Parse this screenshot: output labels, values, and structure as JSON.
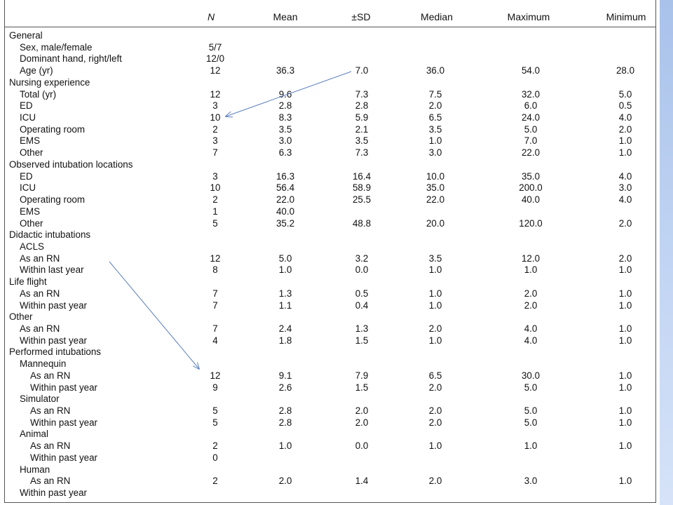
{
  "columns": {
    "label": "",
    "n": "N",
    "mean": "Mean",
    "sd": "±SD",
    "median": "Median",
    "maximum": "Maximum",
    "minimum": "Minimum"
  },
  "rows": [
    {
      "type": "section",
      "label": "General"
    },
    {
      "type": "item",
      "level": 1,
      "label": "Sex, male/female",
      "n": "5/7"
    },
    {
      "type": "item",
      "level": 1,
      "label": "Dominant hand, right/left",
      "n": "12/0"
    },
    {
      "type": "item",
      "level": 1,
      "label": "Age (yr)",
      "n": "12",
      "mean": "36.3",
      "sd": "7.0",
      "median": "36.0",
      "maximum": "54.0",
      "minimum": "28.0"
    },
    {
      "type": "section",
      "label": "Nursing experience"
    },
    {
      "type": "item",
      "level": 1,
      "label": "Total (yr)",
      "n": "12",
      "mean": "9.6",
      "sd": "7.3",
      "median": "7.5",
      "maximum": "32.0",
      "minimum": "5.0"
    },
    {
      "type": "item",
      "level": 1,
      "label": "ED",
      "n": "3",
      "mean": "2.8",
      "sd": "2.8",
      "median": "2.0",
      "maximum": "6.0",
      "minimum": "0.5"
    },
    {
      "type": "item",
      "level": 1,
      "label": "ICU",
      "n": "10",
      "mean": "8.3",
      "sd": "5.9",
      "median": "6.5",
      "maximum": "24.0",
      "minimum": "4.0"
    },
    {
      "type": "item",
      "level": 1,
      "label": "Operating room",
      "n": "2",
      "mean": "3.5",
      "sd": "2.1",
      "median": "3.5",
      "maximum": "5.0",
      "minimum": "2.0"
    },
    {
      "type": "item",
      "level": 1,
      "label": "EMS",
      "n": "3",
      "mean": "3.0",
      "sd": "3.5",
      "median": "1.0",
      "maximum": "7.0",
      "minimum": "1.0"
    },
    {
      "type": "item",
      "level": 1,
      "label": "Other",
      "n": "7",
      "mean": "6.3",
      "sd": "7.3",
      "median": "3.0",
      "maximum": "22.0",
      "minimum": "1.0"
    },
    {
      "type": "section",
      "label": "Observed intubation locations"
    },
    {
      "type": "item",
      "level": 1,
      "label": "ED",
      "n": "3",
      "mean": "16.3",
      "sd": "16.4",
      "median": "10.0",
      "maximum": "35.0",
      "minimum": "4.0"
    },
    {
      "type": "item",
      "level": 1,
      "label": "ICU",
      "n": "10",
      "mean": "56.4",
      "sd": "58.9",
      "median": "35.0",
      "maximum": "200.0",
      "minimum": "3.0"
    },
    {
      "type": "item",
      "level": 1,
      "label": "Operating room",
      "n": "2",
      "mean": "22.0",
      "sd": "25.5",
      "median": "22.0",
      "maximum": "40.0",
      "minimum": "4.0"
    },
    {
      "type": "item",
      "level": 1,
      "label": "EMS",
      "n": "1",
      "mean": "40.0"
    },
    {
      "type": "item",
      "level": 1,
      "label": "Other",
      "n": "5",
      "mean": "35.2",
      "sd": "48.8",
      "median": "20.0",
      "maximum": "120.0",
      "minimum": "2.0"
    },
    {
      "type": "section",
      "label": "Didactic intubations"
    },
    {
      "type": "item",
      "level": 1,
      "label": "ACLS"
    },
    {
      "type": "item",
      "level": 1,
      "label": "As an RN",
      "n": "12",
      "mean": "5.0",
      "sd": "3.2",
      "median": "3.5",
      "maximum": "12.0",
      "minimum": "2.0"
    },
    {
      "type": "item",
      "level": 1,
      "label": "Within last year",
      "n": "8",
      "mean": "1.0",
      "sd": "0.0",
      "median": "1.0",
      "maximum": "1.0",
      "minimum": "1.0"
    },
    {
      "type": "section",
      "label": "Life flight"
    },
    {
      "type": "item",
      "level": 1,
      "label": "As an RN",
      "n": "7",
      "mean": "1.3",
      "sd": "0.5",
      "median": "1.0",
      "maximum": "2.0",
      "minimum": "1.0"
    },
    {
      "type": "item",
      "level": 1,
      "label": "Within past year",
      "n": "7",
      "mean": "1.1",
      "sd": "0.4",
      "median": "1.0",
      "maximum": "2.0",
      "minimum": "1.0"
    },
    {
      "type": "section",
      "label": "Other"
    },
    {
      "type": "item",
      "level": 1,
      "label": "As an RN",
      "n": "7",
      "mean": "2.4",
      "sd": "1.3",
      "median": "2.0",
      "maximum": "4.0",
      "minimum": "1.0"
    },
    {
      "type": "item",
      "level": 1,
      "label": "Within past year",
      "n": "4",
      "mean": "1.8",
      "sd": "1.5",
      "median": "1.0",
      "maximum": "4.0",
      "minimum": "1.0"
    },
    {
      "type": "section",
      "label": "Performed intubations"
    },
    {
      "type": "item",
      "level": 1,
      "label": "Mannequin"
    },
    {
      "type": "item",
      "level": 2,
      "label": "As an RN",
      "n": "12",
      "mean": "9.1",
      "sd": "7.9",
      "median": "6.5",
      "maximum": "30.0",
      "minimum": "1.0"
    },
    {
      "type": "item",
      "level": 2,
      "label": "Within past year",
      "n": "9",
      "mean": "2.6",
      "sd": "1.5",
      "median": "2.0",
      "maximum": "5.0",
      "minimum": "1.0"
    },
    {
      "type": "item",
      "level": 1,
      "label": "Simulator"
    },
    {
      "type": "item",
      "level": 2,
      "label": "As an RN",
      "n": "5",
      "mean": "2.8",
      "sd": "2.0",
      "median": "2.0",
      "maximum": "5.0",
      "minimum": "1.0"
    },
    {
      "type": "item",
      "level": 2,
      "label": "Within past year",
      "n": "5",
      "mean": "2.8",
      "sd": "2.0",
      "median": "2.0",
      "maximum": "5.0",
      "minimum": "1.0"
    },
    {
      "type": "item",
      "level": 1,
      "label": "Animal"
    },
    {
      "type": "item",
      "level": 2,
      "label": "As an RN",
      "n": "2",
      "mean": "1.0",
      "sd": "0.0",
      "median": "1.0",
      "maximum": "1.0",
      "minimum": "1.0"
    },
    {
      "type": "item",
      "level": 2,
      "label": "Within past year",
      "n": "0"
    },
    {
      "type": "item",
      "level": 1,
      "label": "Human"
    },
    {
      "type": "item",
      "level": 2,
      "label": "As an RN",
      "n": "2",
      "mean": "2.0",
      "sd": "1.4",
      "median": "2.0",
      "maximum": "3.0",
      "minimum": "1.0"
    },
    {
      "type": "item",
      "level": 1,
      "label": "Within past year"
    }
  ],
  "annotations": {
    "color": "#5b7fbf"
  },
  "colors": {
    "side_band": "#b7cdf0",
    "text": "#111111",
    "rule": "#555555"
  }
}
